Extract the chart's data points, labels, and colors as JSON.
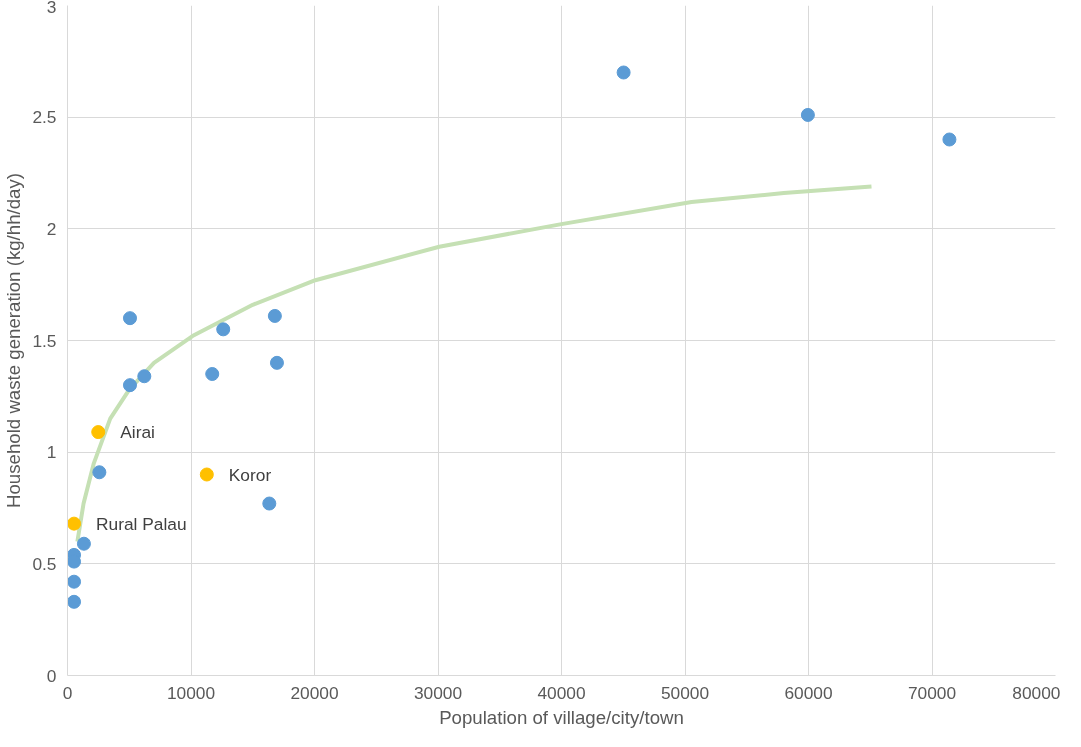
{
  "chart_data": {
    "type": "scatter",
    "xlabel": "Population of village/city/town",
    "ylabel": "Household waste generation (kg/hh/day)",
    "xlim": [
      0,
      80000
    ],
    "ylim": [
      0,
      3
    ],
    "xticks": [
      0,
      10000,
      20000,
      30000,
      40000,
      50000,
      60000,
      70000,
      80000
    ],
    "yticks": [
      0,
      0.5,
      1,
      1.5,
      2,
      2.5,
      3
    ],
    "grid": true,
    "marker": "circle",
    "series": [
      {
        "type": "line",
        "marker": "none",
        "color": "#c5e0b4",
        "x": [
          800,
          1300,
          2130,
          3460,
          5000,
          7000,
          10120,
          15000,
          20070,
          30100,
          39880,
          50530,
          58000,
          65100
        ],
        "values": [
          0.6,
          0.77,
          0.95,
          1.15,
          1.28,
          1.4,
          1.52,
          1.66,
          1.77,
          1.92,
          2.02,
          2.12,
          2.16,
          2.19
        ]
      },
      {
        "color": "#5b9bd5",
        "x": [
          530,
          530,
          530,
          530,
          1330,
          2580,
          5060,
          5060,
          6220,
          11720,
          12610,
          16790,
          16960,
          16340,
          45030,
          59950,
          71410
        ],
        "values": [
          0.54,
          0.51,
          0.42,
          0.33,
          0.59,
          0.91,
          1.3,
          1.6,
          1.34,
          1.35,
          1.55,
          1.61,
          1.4,
          0.77,
          2.7,
          2.51,
          2.4
        ]
      },
      {
        "color": "#ffc000",
        "x": [
          530,
          2490,
          11280
        ],
        "values": [
          0.68,
          1.09,
          0.9
        ]
      }
    ],
    "annotations": [
      {
        "text": "Rural Palau",
        "x": 530,
        "y": 0.68
      },
      {
        "text": "Airai",
        "x": 2490,
        "y": 1.09
      },
      {
        "text": "Koror",
        "x": 11280,
        "y": 0.9
      }
    ]
  }
}
